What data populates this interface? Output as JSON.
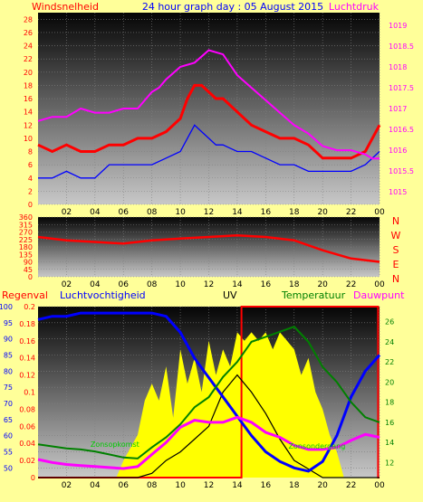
{
  "header": {
    "left_label": "Windsnelheid",
    "title": "24 hour graph day : 05 August 2015",
    "right_label": "Luchtdruk"
  },
  "colors": {
    "background": "#ffff99",
    "wind": "#ff0000",
    "gust": "#0000ff",
    "pressure": "#ff00ff",
    "direction": "#ff0000",
    "humidity": "#0000ff",
    "temperature": "#008000",
    "dewpoint": "#ff00ff",
    "uv": "#000000",
    "solar": "#ffff00",
    "rain": "#ff0000"
  },
  "chart_data": [
    {
      "type": "line",
      "name": "wind-pressure",
      "x_ticks": [
        "02",
        "04",
        "06",
        "08",
        "10",
        "12",
        "14",
        "16",
        "18",
        "20",
        "22",
        "00"
      ],
      "y_left_ticks": [
        0,
        2,
        4,
        6,
        8,
        10,
        12,
        14,
        16,
        18,
        20,
        22,
        24,
        26,
        28
      ],
      "y_right_ticks": [
        1015,
        1015.5,
        1016,
        1016.5,
        1017,
        1017.5,
        1018,
        1018.5,
        1019
      ],
      "ylim_left": [
        0,
        29
      ],
      "ylim_right": [
        1014.7,
        1019.3
      ],
      "series": [
        {
          "key": "wind_avg",
          "color": "#ff0000",
          "x": [
            0,
            1,
            2,
            3,
            4,
            5,
            6,
            7,
            8,
            9,
            10,
            10.5,
            11,
            11.5,
            12,
            12.5,
            13,
            14,
            15,
            16,
            17,
            18,
            19,
            20,
            21,
            22,
            23,
            24
          ],
          "y": [
            9,
            8,
            9,
            8,
            8,
            9,
            9,
            10,
            10,
            11,
            13,
            16,
            18,
            18,
            17,
            16,
            16,
            14,
            12,
            11,
            10,
            10,
            9,
            7,
            7,
            7,
            8,
            12
          ]
        },
        {
          "key": "gust",
          "color": "#0000ff",
          "x": [
            0,
            1,
            2,
            3,
            4,
            5,
            6,
            7,
            8,
            9,
            10,
            10.5,
            11,
            11.5,
            12,
            12.5,
            13,
            14,
            15,
            16,
            17,
            18,
            19,
            20,
            21,
            22,
            23,
            24
          ],
          "y": [
            4,
            4,
            5,
            4,
            4,
            6,
            6,
            6,
            6,
            7,
            8,
            10,
            12,
            11,
            10,
            9,
            9,
            8,
            8,
            7,
            6,
            6,
            5,
            5,
            5,
            5,
            6,
            8
          ]
        },
        {
          "key": "pressure",
          "color": "#ff00ff",
          "x": [
            0,
            1,
            2,
            3,
            4,
            5,
            6,
            7,
            8,
            8.5,
            9,
            10,
            11,
            12,
            13,
            14,
            15,
            16,
            17,
            18,
            19,
            20,
            21,
            22,
            23,
            23.5,
            24
          ],
          "y": [
            1016.7,
            1016.8,
            1016.8,
            1017.0,
            1016.9,
            1016.9,
            1017.0,
            1017.0,
            1017.4,
            1017.5,
            1017.7,
            1018.0,
            1018.1,
            1018.4,
            1018.3,
            1017.8,
            1017.5,
            1017.2,
            1016.9,
            1016.6,
            1016.4,
            1016.1,
            1016.0,
            1016.0,
            1015.9,
            1015.8,
            1015.8
          ]
        }
      ]
    },
    {
      "type": "line",
      "name": "wind-direction",
      "x_ticks": [
        "02",
        "04",
        "06",
        "08",
        "10",
        "12",
        "14",
        "16",
        "18",
        "20",
        "22",
        "00"
      ],
      "y_left_ticks": [
        0,
        45,
        90,
        135,
        180,
        225,
        270,
        315,
        360
      ],
      "y_right_ticks": [
        "N",
        "W",
        "S",
        "E",
        "N"
      ],
      "ylim": [
        0,
        360
      ],
      "series": [
        {
          "key": "direction",
          "color": "#ff0000",
          "x": [
            0,
            2,
            4,
            6,
            8,
            10,
            12,
            14,
            16,
            18,
            20,
            22,
            24
          ],
          "y": [
            240,
            220,
            210,
            200,
            220,
            230,
            240,
            250,
            240,
            220,
            160,
            110,
            90
          ]
        }
      ]
    },
    {
      "type": "line",
      "name": "humidity-temperature-uv",
      "labels": [
        "Regenval",
        "Luchtvochtigheid",
        "UV",
        "Temperatuur",
        "Dauwpunt"
      ],
      "annotation_left": "Zonsopkomst",
      "annotation_right": "Zonsondergang",
      "x_ticks": [
        "02",
        "04",
        "06",
        "08",
        "10",
        "12",
        "14",
        "16",
        "18",
        "20",
        "22",
        "00"
      ],
      "y_rain_ticks": [
        0,
        0.02,
        0.04,
        0.06,
        0.08,
        0.1,
        0.12,
        0.14,
        0.16,
        0.18,
        0.2
      ],
      "y_hum_ticks": [
        50,
        55,
        60,
        65,
        70,
        75,
        80,
        85,
        90,
        95,
        100
      ],
      "y_temp_ticks": [
        12,
        14,
        16,
        18,
        20,
        22,
        24,
        26
      ],
      "rain_ylim": [
        0,
        0.2
      ],
      "hum_ylim": [
        47,
        100
      ],
      "temp_ylim": [
        10.5,
        27.5
      ],
      "series": [
        {
          "key": "humidity",
          "color": "#0000ff",
          "x": [
            0,
            1,
            2,
            3,
            4,
            5,
            6,
            7,
            8,
            9,
            10,
            11,
            12,
            13,
            14,
            15,
            16,
            17,
            18,
            19,
            20,
            21,
            22,
            23,
            24
          ],
          "y": [
            96,
            97,
            97,
            98,
            98,
            98,
            98,
            98,
            98,
            97,
            92,
            84,
            78,
            72,
            66,
            60,
            55,
            52,
            50,
            49,
            52,
            60,
            72,
            80,
            85
          ]
        },
        {
          "key": "temperature",
          "color": "#008000",
          "x": [
            0,
            1,
            2,
            3,
            4,
            5,
            6,
            7,
            8,
            9,
            10,
            11,
            12,
            13,
            14,
            15,
            16,
            17,
            18,
            19,
            20,
            21,
            22,
            23,
            24
          ],
          "y": [
            13.8,
            13.6,
            13.4,
            13.3,
            13.1,
            12.8,
            12.5,
            12.4,
            13.5,
            14.5,
            15.8,
            17.5,
            18.5,
            20.5,
            22,
            24,
            24.5,
            25,
            25.5,
            24,
            21.5,
            20,
            18,
            16.5,
            16
          ]
        },
        {
          "key": "dewpoint",
          "color": "#ff00ff",
          "x": [
            0,
            1,
            2,
            3,
            4,
            5,
            6,
            7,
            8,
            9,
            10,
            11,
            12,
            13,
            14,
            15,
            16,
            17,
            18,
            19,
            20,
            21,
            22,
            23,
            24
          ],
          "y": [
            12.3,
            12.0,
            11.8,
            11.7,
            11.6,
            11.5,
            11.4,
            11.6,
            12.8,
            14.0,
            15.5,
            16.2,
            16.0,
            16.0,
            16.5,
            16.0,
            15.0,
            14.5,
            13.7,
            13.3,
            13.3,
            13.5,
            14.2,
            14.8,
            14.5
          ]
        },
        {
          "key": "uv",
          "color": "#000000",
          "x": [
            0,
            6,
            7,
            8,
            9,
            10,
            11,
            12,
            13,
            14,
            15,
            16,
            17,
            18,
            19,
            20,
            21,
            24
          ],
          "y": [
            0,
            0,
            0,
            0.005,
            0.02,
            0.03,
            0.045,
            0.06,
            0.1,
            0.12,
            0.1,
            0.075,
            0.045,
            0.02,
            0.01,
            0,
            0,
            0
          ]
        },
        {
          "key": "solar",
          "color": "#ffff00",
          "x": [
            5.5,
            6,
            7,
            7.5,
            8,
            8.5,
            9,
            9.5,
            10,
            10.5,
            11,
            11.5,
            12,
            12.5,
            13,
            13.5,
            14,
            14.5,
            15,
            15.5,
            16,
            16.5,
            17,
            17.5,
            18,
            18.5,
            19,
            19.5,
            20,
            20.5,
            21,
            21.5
          ],
          "y": [
            0,
            0.02,
            0.05,
            0.09,
            0.11,
            0.09,
            0.13,
            0.07,
            0.15,
            0.11,
            0.14,
            0.1,
            0.16,
            0.12,
            0.15,
            0.13,
            0.17,
            0.16,
            0.17,
            0.16,
            0.17,
            0.15,
            0.17,
            0.16,
            0.15,
            0.12,
            0.14,
            0.1,
            0.08,
            0.05,
            0.03,
            0
          ]
        },
        {
          "key": "rain",
          "color": "#ff0000",
          "x": [
            0,
            14.3,
            14.3,
            23.9,
            23.9,
            24
          ],
          "y": [
            0,
            0,
            0.2,
            0.2,
            0,
            0
          ]
        }
      ]
    }
  ]
}
